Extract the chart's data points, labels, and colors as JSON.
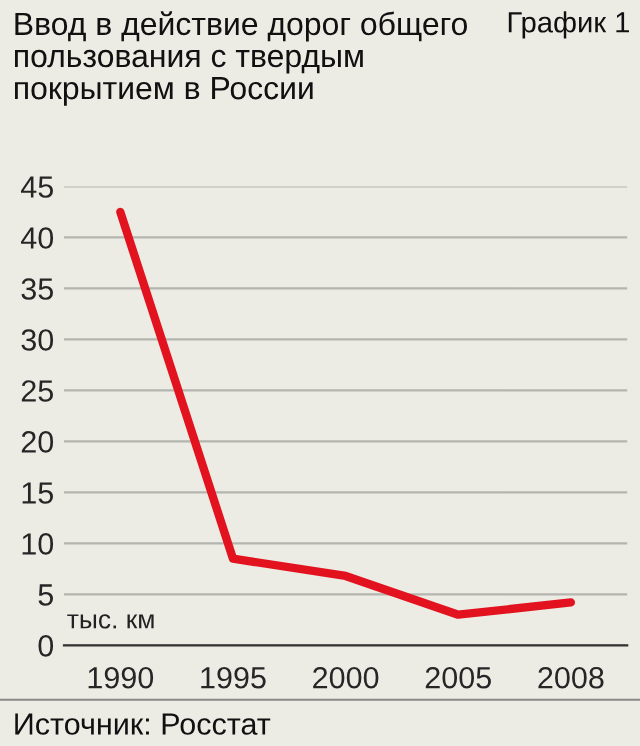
{
  "chart_data": {
    "type": "line",
    "title": "Ввод в действие дорог общего пользования с твердым покрытием в России",
    "subtitle": "График 1",
    "ylabel": "тыс. км",
    "categories": [
      "1990",
      "1995",
      "2000",
      "2005",
      "2008"
    ],
    "series": [
      {
        "color": "#e2131f",
        "values": [
          42.5,
          8.5,
          6.8,
          3.0,
          4.2
        ]
      }
    ],
    "ylim": [
      0,
      45
    ],
    "yticks": [
      0,
      5,
      10,
      15,
      20,
      25,
      30,
      35,
      40,
      45
    ],
    "grid": "y",
    "legend": false,
    "marker": "none",
    "line_style": "solid",
    "annotations": [
      "Источник: Росстат"
    ]
  }
}
